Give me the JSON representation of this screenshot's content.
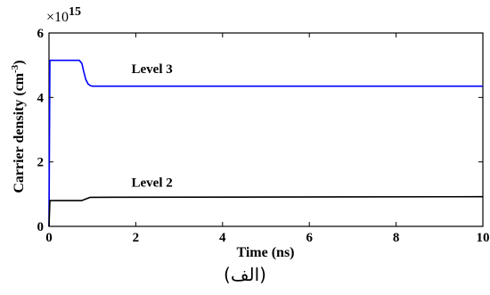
{
  "caption": "(الف)",
  "chart_data": {
    "type": "line",
    "xlabel": "Time (ns)",
    "ylabel": "Carrier density (cm",
    "ylabel_sup": "-3",
    "ylabel_close": ")",
    "multiplier_base": "×10",
    "multiplier_exp": "15",
    "xlim": [
      0,
      10
    ],
    "ylim": [
      0,
      6
    ],
    "xticks": [
      0,
      2,
      4,
      6,
      8,
      10
    ],
    "yticks": [
      0,
      2,
      4,
      6
    ],
    "grid": false,
    "series": [
      {
        "name": "Level 3",
        "color": "#0000ff",
        "x": [
          0,
          0.02,
          0.7,
          0.76,
          0.8,
          0.85,
          0.9,
          0.95,
          1.0,
          1.1,
          10
        ],
        "y": [
          0,
          5.15,
          5.15,
          5.05,
          4.8,
          4.55,
          4.42,
          4.37,
          4.35,
          4.35,
          4.35
        ]
      },
      {
        "name": "Level 2",
        "color": "#000000",
        "x": [
          0,
          0.02,
          0.75,
          0.85,
          0.95,
          10
        ],
        "y": [
          0,
          0.8,
          0.8,
          0.85,
          0.9,
          0.92
        ]
      }
    ],
    "annotations": [
      {
        "text": "Level 3",
        "x": 1.9,
        "y": 4.75
      },
      {
        "text": "Level 2",
        "x": 1.9,
        "y": 1.23
      }
    ]
  }
}
